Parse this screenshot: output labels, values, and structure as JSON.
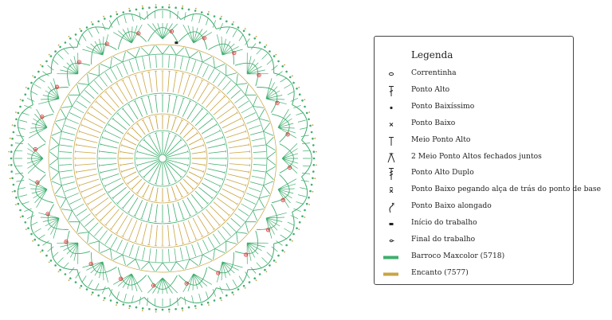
{
  "diagram": {
    "colors": {
      "green": "#3fae6e",
      "gold": "#c8a542",
      "red": "#e0393d",
      "dark": "#222222"
    }
  },
  "legend": {
    "title": "Legenda",
    "items": [
      {
        "name": "chain-stitch",
        "symbol": "oval",
        "label": "Correntinha"
      },
      {
        "name": "double-crochet",
        "symbol": "dc",
        "label": "Ponto Alto"
      },
      {
        "name": "slip-stitch",
        "symbol": "dot",
        "label": "Ponto Baixíssimo"
      },
      {
        "name": "single-crochet",
        "symbol": "x",
        "label": "Ponto Baixo"
      },
      {
        "name": "half-double-crochet",
        "symbol": "hdc",
        "label": "Meio Ponto Alto"
      },
      {
        "name": "hdc2tog",
        "symbol": "hdc2tog",
        "label": "2 Meio Ponto Altos fechados juntos"
      },
      {
        "name": "treble-crochet",
        "symbol": "tr",
        "label": "Ponto Alto Duplo"
      },
      {
        "name": "sc-back-loop",
        "symbol": "xloop",
        "label": "Ponto Baixo pegando alça de trás do ponto de base"
      },
      {
        "name": "long-sc",
        "symbol": "longsc",
        "label": "Ponto Baixo alongado"
      },
      {
        "name": "start",
        "symbol": "start",
        "label": "Início do trabalho"
      },
      {
        "name": "end",
        "symbol": "end",
        "label": "Final do trabalho"
      },
      {
        "name": "yarn-green",
        "symbol": "bar",
        "color": "#3fae6e",
        "label": "Barroco Maxcolor (5718)"
      },
      {
        "name": "yarn-gold",
        "symbol": "bar",
        "color": "#c8a542",
        "label": "Encanto (7577)"
      }
    ]
  }
}
